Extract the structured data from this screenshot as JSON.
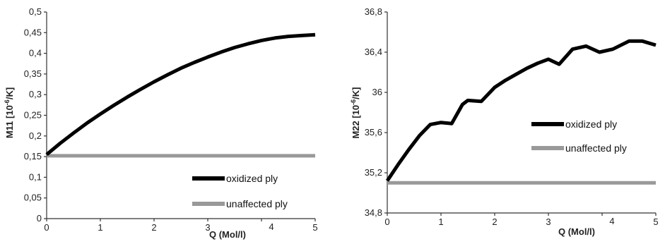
{
  "chart_data": [
    {
      "type": "line",
      "ylabel": "M11  [10-6/K]",
      "xlabel": "Q (Mol/l)",
      "xlim": [
        0,
        5
      ],
      "ylim": [
        0,
        0.5
      ],
      "x_ticks": [
        "0",
        "1",
        "2",
        "3",
        "4",
        "5"
      ],
      "y_ticks": [
        "0",
        "0,05",
        "0,1",
        "0,15",
        "0,2",
        "0,25",
        "0,3",
        "0,35",
        "0,4",
        "0,45",
        "0,5"
      ],
      "legend": "bottom-right",
      "grid": false,
      "series": [
        {
          "name": "oxidized ply",
          "color": "#000000",
          "x": [
            0,
            0.25,
            0.5,
            0.75,
            1,
            1.25,
            1.5,
            1.75,
            2,
            2.25,
            2.5,
            2.75,
            3,
            3.25,
            3.5,
            3.75,
            4,
            4.25,
            4.5,
            4.75,
            5
          ],
          "y": [
            0.155,
            0.182,
            0.207,
            0.231,
            0.253,
            0.274,
            0.294,
            0.313,
            0.331,
            0.348,
            0.364,
            0.378,
            0.391,
            0.403,
            0.414,
            0.423,
            0.431,
            0.437,
            0.441,
            0.443,
            0.445
          ]
        },
        {
          "name": "unaffected ply",
          "color": "#999999",
          "x": [
            0,
            5
          ],
          "y": [
            0.152,
            0.152
          ]
        }
      ]
    },
    {
      "type": "line",
      "ylabel": "M22 [10-6/K]",
      "xlabel": "Q (Mol/l)",
      "xlim": [
        0,
        5
      ],
      "ylim": [
        34.8,
        36.8
      ],
      "x_ticks": [
        "0",
        "1",
        "2",
        "3",
        "4",
        "5"
      ],
      "y_ticks": [
        "34,8",
        "35,2",
        "35,6",
        "36",
        "36,4",
        "36,8"
      ],
      "legend": "center-right",
      "grid": false,
      "series": [
        {
          "name": "oxidized ply",
          "color": "#000000",
          "x": [
            0,
            0.2,
            0.4,
            0.6,
            0.8,
            1.0,
            1.2,
            1.4,
            1.5,
            1.75,
            2.0,
            2.2,
            2.4,
            2.6,
            2.8,
            3.0,
            3.2,
            3.45,
            3.7,
            3.95,
            4.2,
            4.5,
            4.75,
            5.0
          ],
          "y": [
            35.12,
            35.28,
            35.43,
            35.57,
            35.68,
            35.7,
            35.69,
            35.88,
            35.92,
            35.91,
            36.05,
            36.12,
            36.18,
            36.24,
            36.29,
            36.33,
            36.28,
            36.43,
            36.46,
            36.4,
            36.43,
            36.51,
            36.51,
            36.47
          ]
        },
        {
          "name": "unaffected ply",
          "color": "#999999",
          "x": [
            0,
            5
          ],
          "y": [
            35.1,
            35.1
          ]
        }
      ]
    }
  ]
}
